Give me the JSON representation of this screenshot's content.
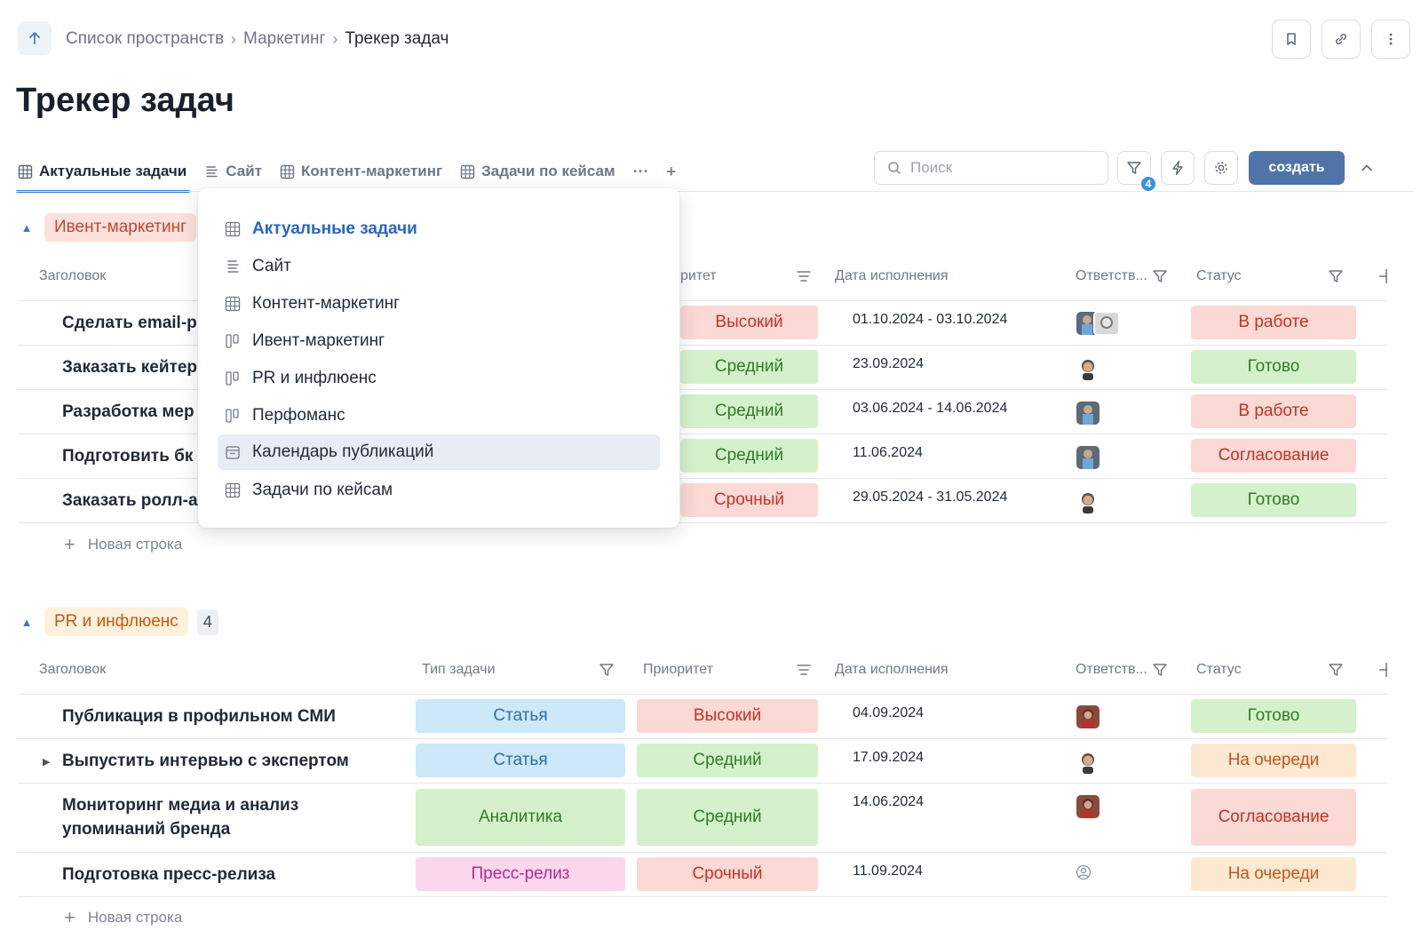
{
  "breadcrumb": {
    "items": [
      "Список пространств",
      "Маркетинг"
    ],
    "current": "Трекер задач"
  },
  "page": {
    "title": "Трекер задач"
  },
  "tabs": [
    {
      "label": "Актуальные задачи",
      "icon": "table-icon",
      "active": true
    },
    {
      "label": "Сайт",
      "icon": "list-icon"
    },
    {
      "label": "Контент-маркетинг",
      "icon": "table-icon"
    },
    {
      "label": "Задачи по кейсам",
      "icon": "table-icon"
    }
  ],
  "tab_more": "···",
  "tab_add": "+",
  "search": {
    "placeholder": "Поиск",
    "value": ""
  },
  "filter_badge": "4",
  "create_label": "создать",
  "dropdown": {
    "items": [
      {
        "label": "Актуальные задачи",
        "icon": "table-icon",
        "active": true
      },
      {
        "label": "Сайт",
        "icon": "list-icon"
      },
      {
        "label": "Контент-маркетинг",
        "icon": "table-icon"
      },
      {
        "label": "Ивент-маркетинг",
        "icon": "kanban-icon"
      },
      {
        "label": "PR и инфлюенс",
        "icon": "kanban-icon"
      },
      {
        "label": "Перфоманс",
        "icon": "kanban-icon"
      },
      {
        "label": "Календарь публикаций",
        "icon": "calendar-icon",
        "hover": true
      },
      {
        "label": "Задачи по кейсам",
        "icon": "table-icon"
      }
    ]
  },
  "columns": {
    "title": "Заголовок",
    "type": "Тип задачи",
    "priority": "Приоритет",
    "priority_partial": "ритет",
    "date": "Дата исполнения",
    "assignee": "Ответств...",
    "status": "Статус"
  },
  "new_row_label": "Новая строка",
  "groups": [
    {
      "name": "Ивент-маркетинг",
      "rows": [
        {
          "title": "Сделать email-р",
          "priority": "Высокий",
          "date": "01.10.2024 - 03.10.2024",
          "status": "В работе"
        },
        {
          "title": "Заказать кейтер",
          "priority": "Средний",
          "date": "23.09.2024",
          "status": "Готово"
        },
        {
          "title": "Разработка мер",
          "priority": "Средний",
          "date": "03.06.2024 - 14.06.2024",
          "status": "В работе"
        },
        {
          "title": "Подготовить бк",
          "priority": "Средний",
          "date": "11.06.2024",
          "status": "Согласование"
        },
        {
          "title": "Заказать ролл-а",
          "priority": "Срочный",
          "date": "29.05.2024 - 31.05.2024",
          "status": "Готово"
        }
      ]
    },
    {
      "name": "PR и инфлюенс",
      "count": "4",
      "rows": [
        {
          "title": "Публикация в профильном СМИ",
          "type": "Статья",
          "priority": "Высокий",
          "date": "04.09.2024",
          "status": "Готово"
        },
        {
          "title": "Выпустить интервью с экспертом",
          "type": "Статья",
          "priority": "Средний",
          "date": "17.09.2024",
          "status": "На очереди"
        },
        {
          "title": "Мониторинг медиа и анализ упоминаний бренда",
          "type": "Аналитика",
          "priority": "Средний",
          "date": "14.06.2024",
          "status": "Согласование"
        },
        {
          "title": "Подготовка пресс-релиза",
          "type": "Пресс-релиз",
          "priority": "Срочный",
          "date": "11.09.2024",
          "status": "На очереди"
        }
      ]
    }
  ],
  "colors": {
    "accent": "#3d7ad6",
    "create": "#5074a8"
  }
}
